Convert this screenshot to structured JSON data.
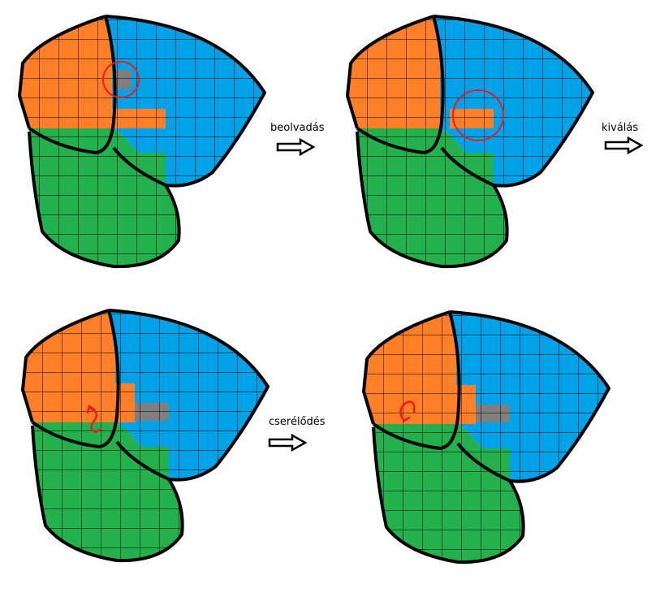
{
  "colors": {
    "orange": "#ff7f27",
    "blue": "#00a2e8",
    "green": "#22b14c",
    "gray": "#7f7f7f",
    "red": "#ed1c24",
    "outline": "#000000"
  },
  "steps": [
    {
      "label": "beolvadás"
    },
    {
      "label": "kiválás"
    },
    {
      "label": "cserélődés"
    }
  ],
  "panels": [
    {
      "name": "panel-initial",
      "marker": "circle-around-gray-cell"
    },
    {
      "name": "panel-after-merge",
      "marker": "circle-around-orange-bar"
    },
    {
      "name": "panel-before-exchange",
      "marker": "curved-arrow"
    },
    {
      "name": "panel-after-exchange",
      "marker": "curved-arrow"
    }
  ]
}
